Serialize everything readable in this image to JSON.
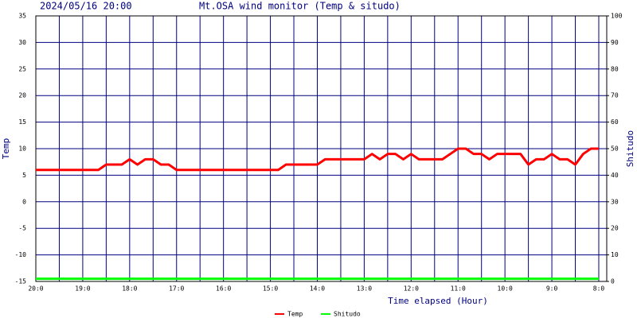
{
  "chart_data": {
    "type": "line",
    "timestamp": "2024/05/16 20:00",
    "title": "Mt.OSA wind monitor (Temp & situdo)",
    "x_label": "Time elapsed (Hour)",
    "y_label": "Temp",
    "y2_label": "Shitudo",
    "x": [
      20,
      19.8333,
      19.6667,
      19.5,
      19.3333,
      19.1667,
      19,
      18.8333,
      18.6667,
      18.5,
      18.3333,
      18.1667,
      18,
      17.8333,
      17.6667,
      17.5,
      17.3333,
      17.1667,
      17,
      16.8333,
      16.6667,
      16.5,
      16.3333,
      16.1667,
      16,
      15.8333,
      15.6667,
      15.5,
      15.3333,
      15.1667,
      15,
      14.8333,
      14.6667,
      14.5,
      14.3333,
      14.1667,
      14,
      13.8333,
      13.6667,
      13.5,
      13.3333,
      13.1667,
      13,
      12.8333,
      12.6667,
      12.5,
      12.3333,
      12.1667,
      12,
      11.8333,
      11.6667,
      11.5,
      11.3333,
      11.1667,
      11,
      10.8333,
      10.6667,
      10.5,
      10.3333,
      10.1667,
      10,
      9.8333,
      9.6667,
      9.5,
      9.3333,
      9.1667,
      9,
      8.8333,
      8.6667,
      8.5,
      8.3333,
      8.1667,
      8
    ],
    "series": [
      {
        "name": "Temp",
        "color": "#ff0000",
        "axis": "y",
        "values": [
          6,
          6,
          6,
          6,
          6,
          6,
          6,
          6,
          6,
          7,
          7,
          7,
          8,
          7,
          8,
          8,
          7,
          7,
          6,
          6,
          6,
          6,
          6,
          6,
          6,
          6,
          6,
          6,
          6,
          6,
          6,
          6,
          7,
          7,
          7,
          7,
          7,
          8,
          8,
          8,
          8,
          8,
          8,
          9,
          8,
          9,
          9,
          8,
          9,
          8,
          8,
          8,
          8,
          9,
          10,
          10,
          9,
          9,
          8,
          9,
          9,
          9,
          9,
          7,
          8,
          8,
          9,
          8,
          8,
          7,
          9,
          10,
          10
        ]
      },
      {
        "name": "Shitudo",
        "color": "#00ff00",
        "axis": "y2",
        "values": [
          1,
          1,
          1,
          1,
          1,
          1,
          1,
          1,
          1,
          1,
          1,
          1,
          1,
          1,
          1,
          1,
          1,
          1,
          1,
          1,
          1,
          1,
          1,
          1,
          1,
          1,
          1,
          1,
          1,
          1,
          1,
          1,
          1,
          1,
          1,
          1,
          1,
          1,
          1,
          1,
          1,
          1,
          1,
          1,
          1,
          1,
          1,
          1,
          1,
          1,
          1,
          1,
          1,
          1,
          1,
          1,
          1,
          1,
          1,
          1,
          1,
          1,
          1,
          1,
          1,
          1,
          1,
          1,
          1,
          1,
          1,
          1,
          1
        ]
      }
    ],
    "xlim": [
      20,
      7.83
    ],
    "xticks": [
      {
        "value": 20,
        "label": "20:0"
      },
      {
        "value": 19,
        "label": "19:0"
      },
      {
        "value": 18,
        "label": "18:0"
      },
      {
        "value": 17,
        "label": "17:0"
      },
      {
        "value": 16,
        "label": "16:0"
      },
      {
        "value": 15,
        "label": "15:0"
      },
      {
        "value": 14,
        "label": "14:0"
      },
      {
        "value": 13,
        "label": "13:0"
      },
      {
        "value": 12,
        "label": "12:0"
      },
      {
        "value": 11,
        "label": "11:0"
      },
      {
        "value": 10,
        "label": "10:0"
      },
      {
        "value": 9,
        "label": "9:0"
      },
      {
        "value": 8,
        "label": "8:0"
      }
    ],
    "xminor_grid": [
      19.5,
      18.5,
      17.5,
      16.5,
      15.5,
      14.5,
      13.5,
      12.5,
      11.5,
      10.5,
      9.5,
      8.5
    ],
    "ylim": [
      -15,
      35
    ],
    "yticks": [
      -15,
      -10,
      -5,
      0,
      5,
      10,
      15,
      20,
      25,
      30,
      35
    ],
    "y2lim": [
      0,
      100
    ],
    "y2ticks": [
      0,
      10,
      20,
      30,
      40,
      50,
      60,
      70,
      80,
      90,
      100
    ],
    "grid": true,
    "grid_color": "#000080",
    "legend": "bottom"
  }
}
